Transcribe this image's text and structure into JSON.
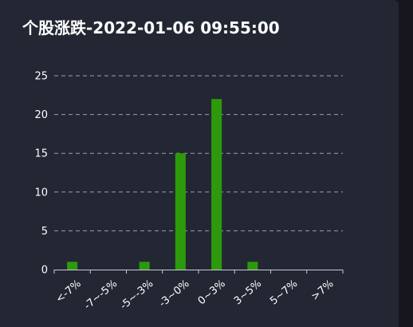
{
  "header": {
    "title": "个股涨跌-2022-01-06 09:55:00"
  },
  "colors": {
    "panel_bg": "#232734",
    "page_bg": "#17161f",
    "bar": "#2d9a0c",
    "grid": "#9aa0ad",
    "text": "#ffffff"
  },
  "chart_data": {
    "type": "bar",
    "title": "个股涨跌-2022-01-06 09:55:00",
    "xlabel": "",
    "ylabel": "",
    "categories": [
      "<-7%",
      "-7~-5%",
      "-5~-3%",
      "-3~0%",
      "0~3%",
      "3~5%",
      "5~7%",
      ">7%"
    ],
    "values": [
      1,
      0,
      1,
      15,
      22,
      1,
      0,
      0
    ],
    "ylim": [
      0,
      25
    ],
    "yticks": [
      0,
      5,
      10,
      15,
      20,
      25
    ],
    "grid": true,
    "grid_style": "dashed",
    "legend": "none"
  }
}
